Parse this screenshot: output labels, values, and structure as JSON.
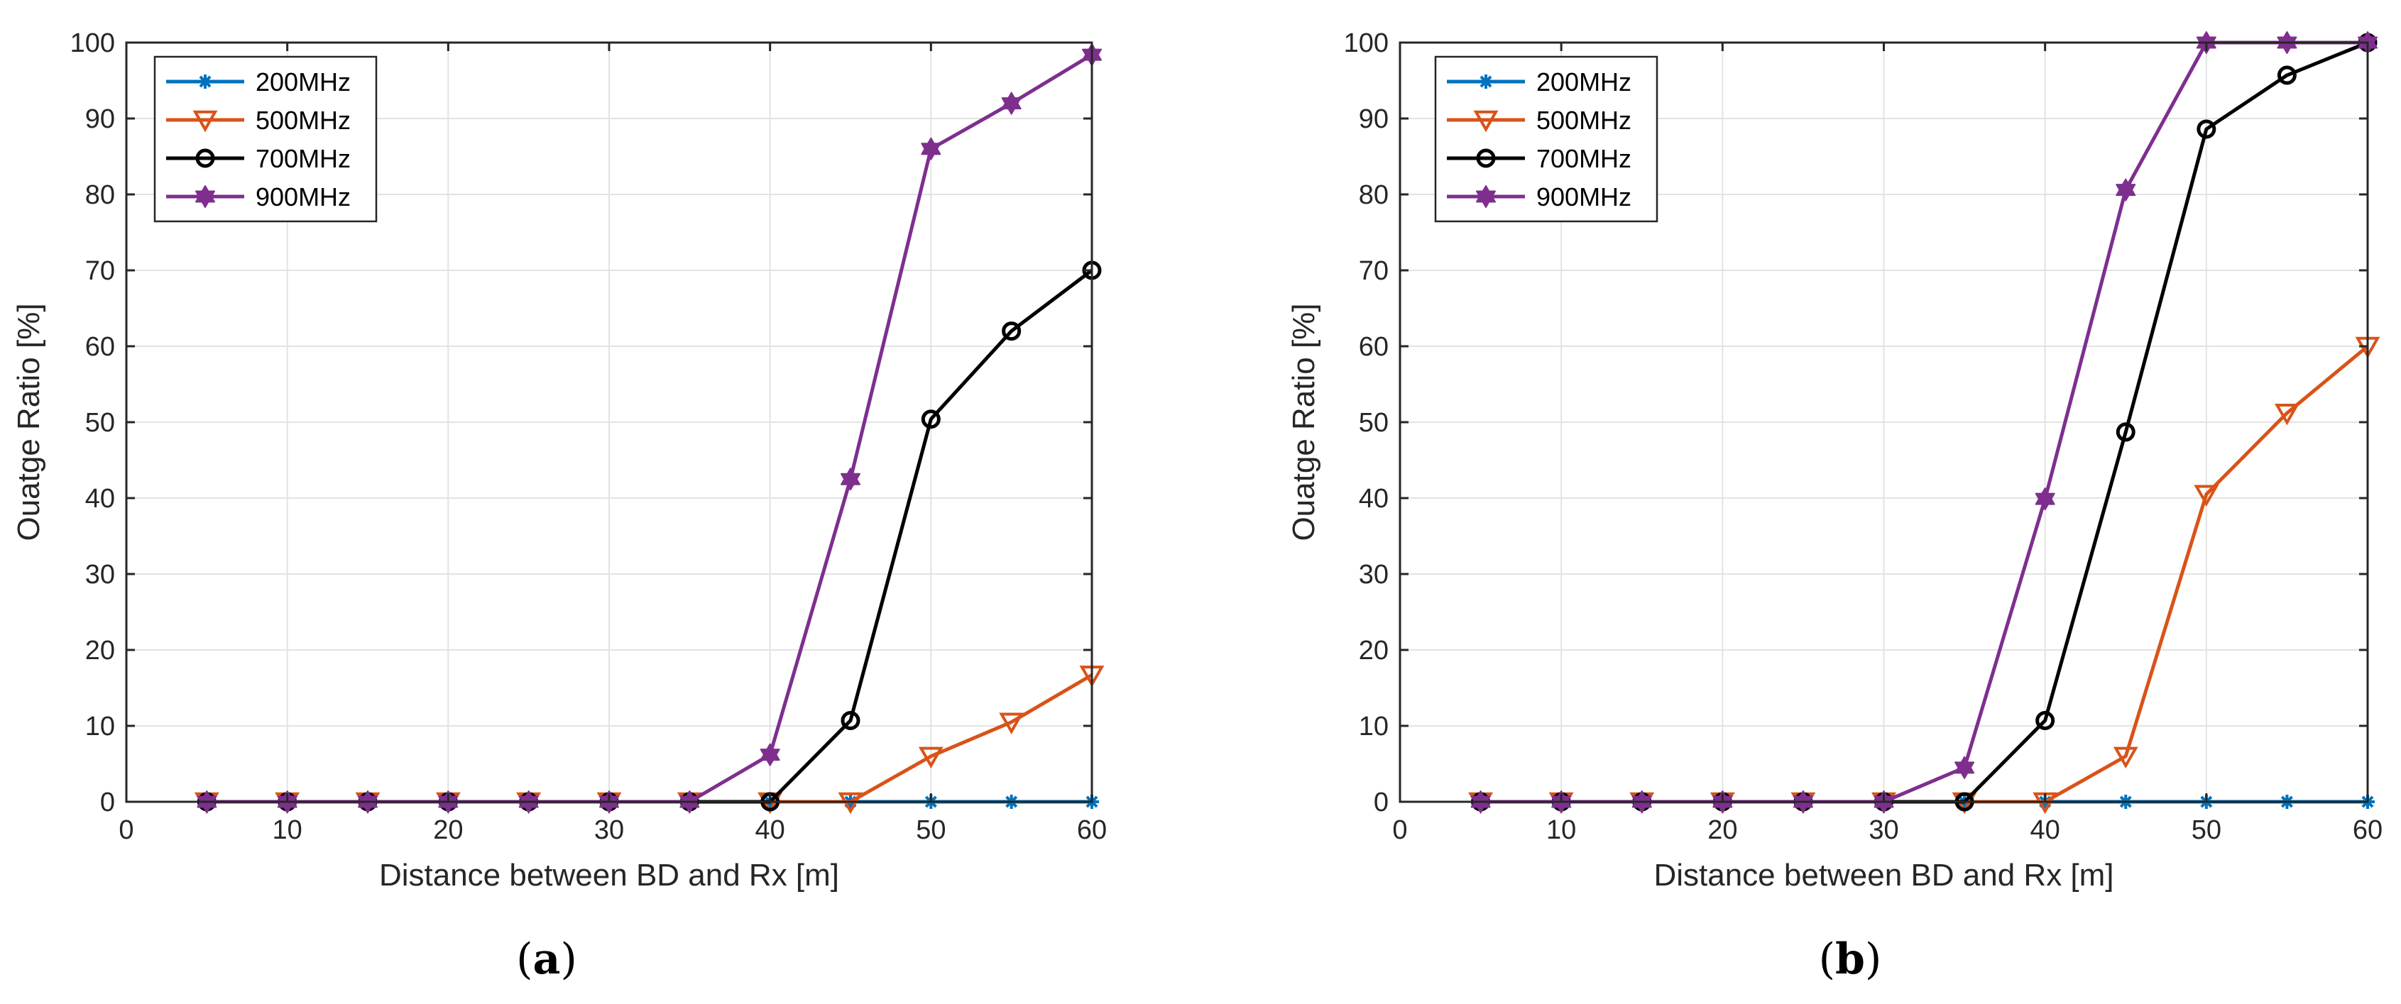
{
  "figure_captions": [
    "(a)",
    "(b)"
  ],
  "colors": {
    "200MHz": "#0072BD",
    "500MHz": "#D95319",
    "700MHz": "#000000",
    "900MHz": "#7E2F8E",
    "grid": "#e3e3e3",
    "axis": "#262626"
  },
  "chart_data": [
    {
      "type": "line",
      "caption": "(a)",
      "title": "",
      "xlabel": "Distance between BD and Rx [m]",
      "ylabel": "Ouatge Ratio [%]",
      "xlim": [
        0,
        60
      ],
      "ylim": [
        0,
        100
      ],
      "xticks": [
        "0",
        "10",
        "20",
        "30",
        "40",
        "50",
        "60"
      ],
      "yticks": [
        "0",
        "10",
        "20",
        "30",
        "40",
        "50",
        "60",
        "70",
        "80",
        "90",
        "100"
      ],
      "grid": true,
      "legend_position": "top-left",
      "x": [
        5,
        10,
        15,
        20,
        25,
        30,
        35,
        40,
        45,
        50,
        55,
        60
      ],
      "series": [
        {
          "name": "200MHz",
          "marker": "asterisk",
          "values": [
            0,
            0,
            0,
            0,
            0,
            0,
            0,
            0,
            0,
            0,
            0,
            0
          ]
        },
        {
          "name": "500MHz",
          "marker": "triangle-down",
          "values": [
            0,
            0,
            0,
            0,
            0,
            0,
            0,
            0,
            0,
            6,
            10.5,
            16.7
          ]
        },
        {
          "name": "700MHz",
          "marker": "circle",
          "values": [
            0,
            0,
            0,
            0,
            0,
            0,
            0,
            0,
            10.7,
            50.4,
            62,
            70
          ]
        },
        {
          "name": "900MHz",
          "marker": "hexagram",
          "values": [
            0,
            0,
            0,
            0,
            0,
            0,
            0,
            6.2,
            42.5,
            86,
            92,
            98.4
          ]
        }
      ]
    },
    {
      "type": "line",
      "caption": "(b)",
      "title": "",
      "xlabel": "Distance between BD and Rx [m]",
      "ylabel": "Ouatge Ratio [%]",
      "xlim": [
        0,
        60
      ],
      "ylim": [
        0,
        100
      ],
      "xticks": [
        "0",
        "10",
        "20",
        "30",
        "40",
        "50",
        "60"
      ],
      "yticks": [
        "0",
        "10",
        "20",
        "30",
        "40",
        "50",
        "60",
        "70",
        "80",
        "90",
        "100"
      ],
      "grid": true,
      "legend_position": "top-left",
      "x": [
        5,
        10,
        15,
        20,
        25,
        30,
        35,
        40,
        45,
        50,
        55,
        60
      ],
      "series": [
        {
          "name": "200MHz",
          "marker": "asterisk",
          "values": [
            0,
            0,
            0,
            0,
            0,
            0,
            0,
            0,
            0,
            0,
            0,
            0
          ]
        },
        {
          "name": "500MHz",
          "marker": "triangle-down",
          "values": [
            0,
            0,
            0,
            0,
            0,
            0,
            0,
            0,
            6,
            40.5,
            51.2,
            60
          ]
        },
        {
          "name": "700MHz",
          "marker": "circle",
          "values": [
            0,
            0,
            0,
            0,
            0,
            0,
            0,
            10.7,
            48.7,
            88.6,
            95.7,
            100
          ]
        },
        {
          "name": "900MHz",
          "marker": "hexagram",
          "values": [
            0,
            0,
            0,
            0,
            0,
            0,
            4.5,
            39.9,
            80.6,
            100,
            100,
            100
          ]
        }
      ]
    }
  ]
}
